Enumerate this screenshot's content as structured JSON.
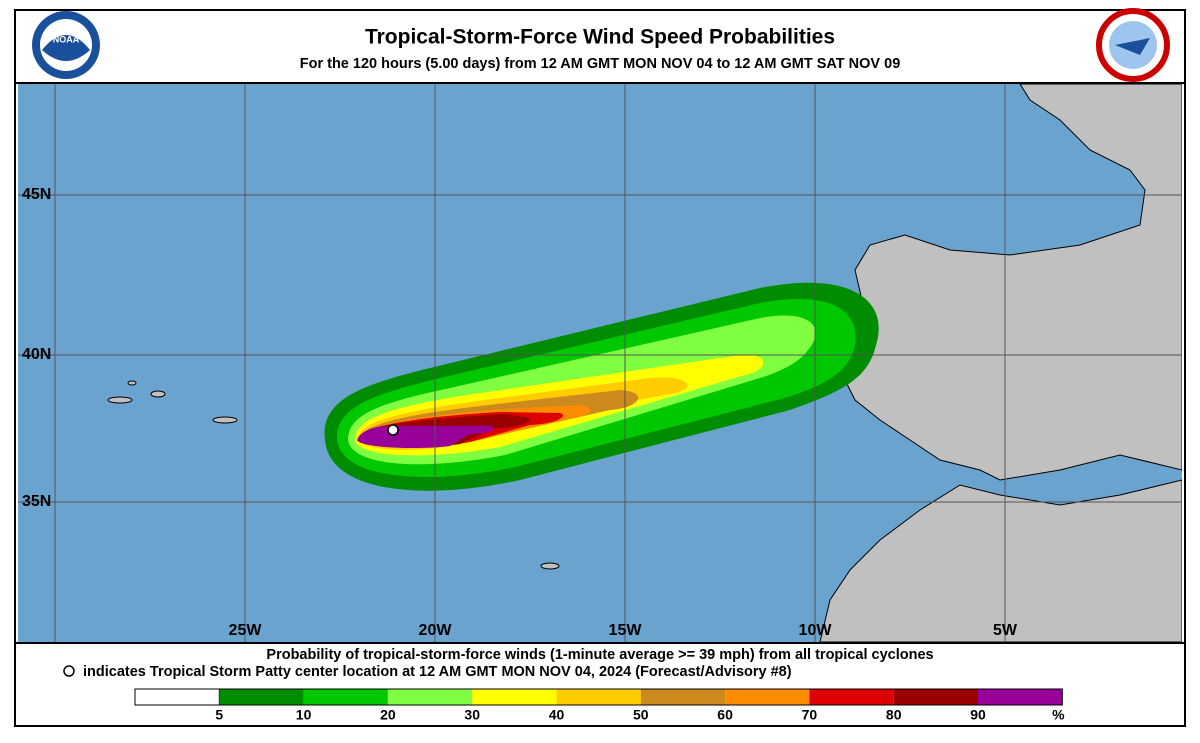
{
  "header": {
    "title": "Tropical-Storm-Force Wind Speed Probabilities",
    "subtitle": "For the 120 hours (5.00 days) from 12 AM GMT MON NOV 04 to 12 AM GMT SAT NOV 09",
    "noaa_logo": "NOAA"
  },
  "map": {
    "lat_labels": [
      "45N",
      "40N",
      "35N"
    ],
    "lon_labels": [
      "25W",
      "20W",
      "15W",
      "10W",
      "5W"
    ]
  },
  "footer": {
    "line1": "Probability of tropical-storm-force winds (1-minute average >= 39 mph) from all tropical cyclones",
    "line2": "indicates Tropical Storm Patty center location at 12 AM GMT MON NOV 04, 2024 (Forecast/Advisory #8)"
  },
  "legend": {
    "colors": [
      "#ffffff",
      "#008c00",
      "#00c800",
      "#80ff40",
      "#ffff00",
      "#ffcc00",
      "#cc8a1e",
      "#ff8c00",
      "#dd0000",
      "#990000",
      "#990099"
    ],
    "labels": [
      5,
      10,
      20,
      30,
      40,
      50,
      60,
      70,
      80,
      90
    ],
    "unit": "%"
  }
}
